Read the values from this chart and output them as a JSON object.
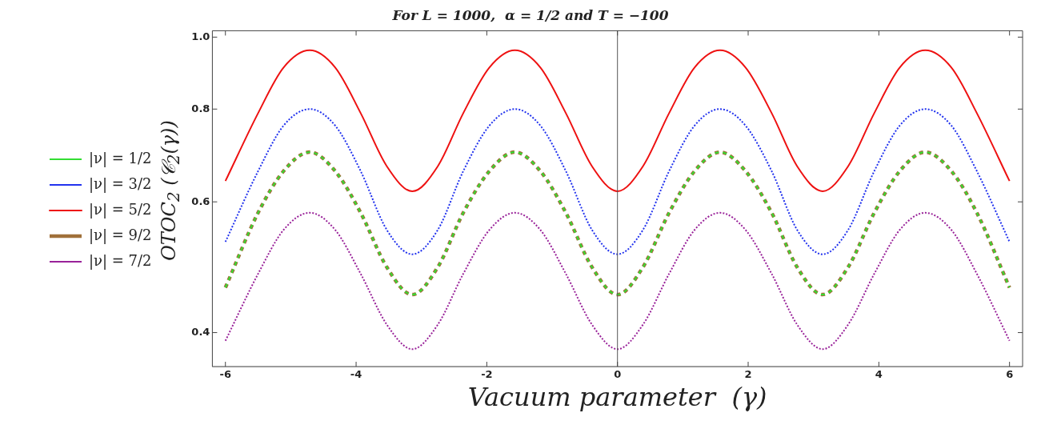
{
  "chart_data": {
    "type": "line",
    "title": "For L = 1000,  α = 1/2 and T = −100",
    "xlabel": "Vacuum parameter  (γ)",
    "ylabel": "OTOC$_{2}$ (𝒞$_{2}$(γ))",
    "x": [
      -6,
      -5.5,
      -5.11,
      -4.71,
      -4.32,
      -3.93,
      -3.53,
      -3.14,
      -2.75,
      -2.36,
      -1.96,
      -1.57,
      -1.18,
      -0.79,
      -0.39,
      0,
      0.39,
      0.79,
      1.18,
      1.57,
      1.96,
      2.36,
      2.75,
      3.14,
      3.53,
      3.93,
      4.32,
      4.71,
      5.11,
      5.5,
      6
    ],
    "series": [
      {
        "name": "|ν| = 1/2",
        "color": "#33dd33",
        "line_style": "dashed",
        "values": [
          0.46,
          0.58,
          0.66,
          0.7,
          0.66,
          0.58,
          0.49,
          0.45,
          0.49,
          0.58,
          0.66,
          0.7,
          0.66,
          0.58,
          0.49,
          0.45,
          0.49,
          0.58,
          0.66,
          0.7,
          0.66,
          0.58,
          0.49,
          0.45,
          0.49,
          0.58,
          0.66,
          0.7,
          0.66,
          0.58,
          0.46
        ]
      },
      {
        "name": "|ν| = 3/2",
        "color": "#2233ee",
        "line_style": "dotted",
        "values": [
          0.53,
          0.66,
          0.76,
          0.8,
          0.76,
          0.66,
          0.55,
          0.51,
          0.55,
          0.66,
          0.76,
          0.8,
          0.76,
          0.66,
          0.55,
          0.51,
          0.55,
          0.66,
          0.76,
          0.8,
          0.76,
          0.66,
          0.55,
          0.51,
          0.55,
          0.66,
          0.76,
          0.8,
          0.76,
          0.66,
          0.53
        ]
      },
      {
        "name": "|ν| = 5/2",
        "color": "#ee1111",
        "line_style": "solid",
        "values": [
          0.64,
          0.79,
          0.91,
          0.96,
          0.91,
          0.79,
          0.67,
          0.62,
          0.67,
          0.79,
          0.91,
          0.96,
          0.91,
          0.79,
          0.67,
          0.62,
          0.67,
          0.79,
          0.91,
          0.96,
          0.91,
          0.79,
          0.67,
          0.62,
          0.67,
          0.79,
          0.91,
          0.96,
          0.91,
          0.79,
          0.64
        ]
      },
      {
        "name": "|ν| = 9/2",
        "color": "#a0703a",
        "line_style": "dashed",
        "values": [
          0.46,
          0.58,
          0.66,
          0.7,
          0.66,
          0.58,
          0.49,
          0.45,
          0.49,
          0.58,
          0.66,
          0.7,
          0.66,
          0.58,
          0.49,
          0.45,
          0.49,
          0.58,
          0.66,
          0.7,
          0.66,
          0.58,
          0.49,
          0.45,
          0.49,
          0.58,
          0.66,
          0.7,
          0.66,
          0.58,
          0.46
        ]
      },
      {
        "name": "|ν| = 7/2",
        "color": "#992299",
        "line_style": "dotted",
        "values": [
          0.39,
          0.48,
          0.55,
          0.58,
          0.55,
          0.48,
          0.41,
          0.38,
          0.41,
          0.48,
          0.55,
          0.58,
          0.55,
          0.48,
          0.41,
          0.38,
          0.41,
          0.48,
          0.55,
          0.58,
          0.55,
          0.48,
          0.41,
          0.38,
          0.41,
          0.48,
          0.55,
          0.58,
          0.55,
          0.48,
          0.39
        ]
      }
    ],
    "xlim": [
      -6.2,
      6.2
    ],
    "xticks": [
      -6,
      -4,
      -2,
      0,
      2,
      4,
      6
    ],
    "ylim": [
      0.36,
      1.02
    ],
    "yticks": [
      0.4,
      0.6,
      0.8,
      {
        "value": 1,
        "label": "1.0"
      }
    ],
    "log": true,
    "grid": false,
    "legend": "left",
    "marker": "none",
    "ref_lines": [
      {
        "axis": "x",
        "value": 0,
        "color": "#555555"
      }
    ]
  }
}
